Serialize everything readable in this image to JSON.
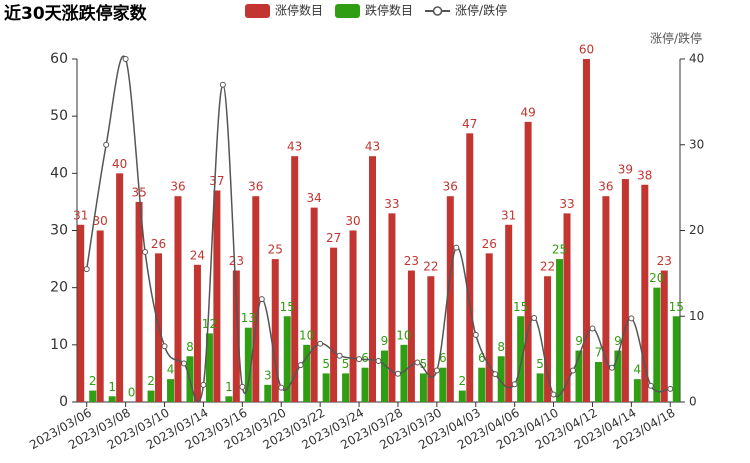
{
  "chart_data": {
    "type": "bar",
    "title": "近30天涨跌停家数",
    "legend_position": "top",
    "categories": [
      "2023/03/06",
      null,
      "2023/03/08",
      null,
      "2023/03/10",
      null,
      "2023/03/14",
      null,
      "2023/03/16",
      null,
      "2023/03/20",
      null,
      "2023/03/22",
      null,
      "2023/03/24",
      null,
      "2023/03/28",
      null,
      "2023/03/30",
      null,
      "2023/04/03",
      null,
      "2023/04/06",
      null,
      "2023/04/10",
      null,
      "2023/04/12",
      null,
      "2023/04/14",
      null,
      "2023/04/18"
    ],
    "series": [
      {
        "name": "涨停数目",
        "color": "#c23531",
        "type": "bar",
        "values": [
          31,
          30,
          40,
          35,
          26,
          36,
          24,
          37,
          23,
          36,
          25,
          43,
          34,
          27,
          30,
          43,
          33,
          23,
          22,
          36,
          47,
          26,
          31,
          49,
          22,
          33,
          60,
          36,
          39,
          38,
          23
        ]
      },
      {
        "name": "跌停数目",
        "color": "#2f9e12",
        "type": "bar",
        "values": [
          2,
          1,
          0,
          2,
          4,
          8,
          12,
          1,
          13,
          3,
          15,
          10,
          5,
          5,
          6,
          9,
          10,
          5,
          6,
          2,
          6,
          8,
          15,
          5,
          25,
          9,
          7,
          9,
          4,
          20,
          15
        ]
      },
      {
        "name": "涨停/跌停",
        "color": "#555555",
        "type": "line",
        "axis": "y2",
        "values": [
          15.5,
          30,
          40,
          17.5,
          6.5,
          4.5,
          2,
          37,
          1.77,
          12,
          1.67,
          4.3,
          6.8,
          5.4,
          5,
          4.78,
          3.3,
          4.6,
          3.67,
          18,
          7.83,
          3.25,
          2.07,
          9.8,
          0.88,
          3.67,
          8.57,
          4,
          9.75,
          1.9,
          1.53
        ]
      }
    ],
    "ylim": [
      0,
      60
    ],
    "yticks": [
      0,
      10,
      20,
      30,
      40,
      50,
      60
    ],
    "y2label": "涨停/跌停",
    "y2lim": [
      0,
      40
    ],
    "y2ticks": [
      0,
      10,
      20,
      30,
      40
    ]
  }
}
